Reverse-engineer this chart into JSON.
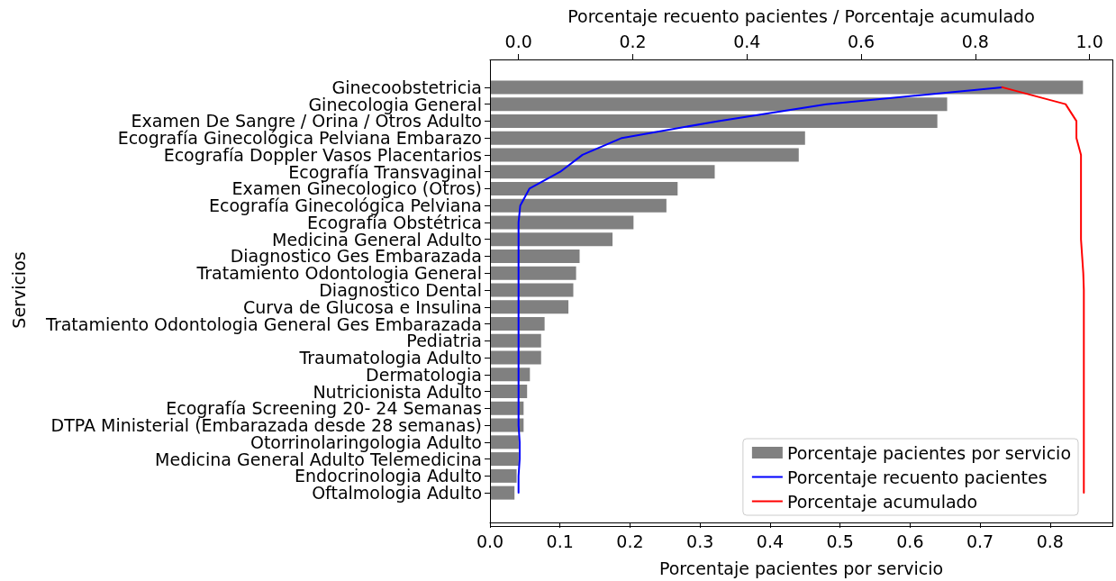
{
  "chart_data": {
    "type": "bar",
    "orientation": "horizontal",
    "xlabel": "Porcentaje pacientes por servicio",
    "x2label": "Porcentaje recuento pacientes / Porcentaje acumulado",
    "ylabel": "Servicios",
    "categories": [
      "Ginecoobstetricia",
      "Ginecologia General",
      "Examen De Sangre / Orina / Otros Adulto",
      "Ecografía Ginecológica Pelviana Embarazo",
      "Ecografía Doppler Vasos Placentarios",
      "Ecografía Transvaginal",
      "Examen Ginecologico (Otros)",
      "Ecografía Ginecológica Pelviana",
      "Ecografía Obstétrica",
      "Medicina General Adulto",
      "Diagnostico Ges Embarazada",
      "Tratamiento Odontologia General",
      "Diagnostico Dental",
      "Curva de Glucosa e Insulina",
      "Tratamiento Odontologia General Ges Embarazada",
      "Pediatria",
      "Traumatologia Adulto",
      "Dermatologia",
      "Nutricionista Adulto",
      "Ecografía Screening 20- 24 Semanas",
      "DTPA Ministerial (Embarazada desde 28 semanas)",
      "Otorrinolaringologia Adulto",
      "Medicina General Adulto Telemedicina",
      "Endocrinologia Adulto",
      "Oftalmologia Adulto"
    ],
    "series": [
      {
        "name": "Porcentaje pacientes por servicio",
        "color": "#808080",
        "values": [
          0.847,
          0.653,
          0.639,
          0.45,
          0.441,
          0.321,
          0.268,
          0.252,
          0.205,
          0.175,
          0.128,
          0.123,
          0.119,
          0.112,
          0.078,
          0.073,
          0.073,
          0.057,
          0.053,
          0.048,
          0.048,
          0.041,
          0.041,
          0.038,
          0.035
        ]
      },
      {
        "name": "Porcentaje recuento pacientes",
        "type": "line",
        "axis": "x2",
        "color": "#0000ff",
        "values": [
          0.847,
          0.539,
          0.35,
          0.181,
          0.112,
          0.073,
          0.019,
          0.003,
          0,
          0,
          0,
          0,
          0,
          0,
          0,
          0,
          0,
          0,
          0,
          0,
          0,
          0.002,
          0.002,
          0,
          0
        ]
      },
      {
        "name": "Porcentaje acumulado",
        "type": "line",
        "axis": "x2",
        "color": "#ff0000",
        "values": [
          0.847,
          0.958,
          0.977,
          0.977,
          0.985,
          0.985,
          0.985,
          0.985,
          0.985,
          0.985,
          0.987,
          0.989,
          0.99,
          0.99,
          0.99,
          0.99,
          0.99,
          0.99,
          0.99,
          0.99,
          0.99,
          0.99,
          0.99,
          0.99,
          0.99
        ]
      }
    ],
    "xlim": [
      0,
      0.889
    ],
    "xticks": [
      {
        "value": 0,
        "label": "0.0"
      },
      0.1,
      0.2,
      0.3,
      0.4,
      0.5,
      0.6,
      0.7,
      0.8
    ],
    "x2lim": [
      -0.05,
      1.04
    ],
    "x2ticks": [
      {
        "value": 0,
        "label": "0.0"
      },
      0.2,
      0.4,
      0.6,
      0.8,
      {
        "value": 1,
        "label": "1.0"
      }
    ],
    "legend": "bottom right",
    "grid": false,
    "marker": "none",
    "line_style": "solid"
  }
}
